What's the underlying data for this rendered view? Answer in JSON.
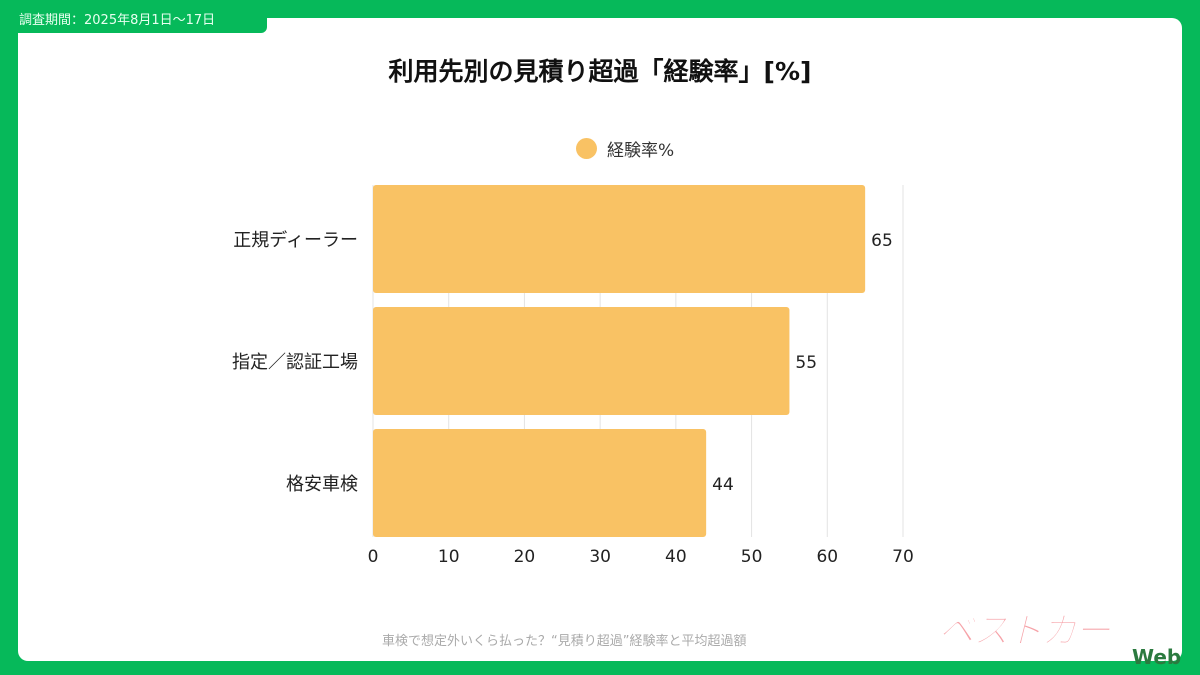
{
  "header": {
    "period": "調査期間：2025年8月1日〜17日"
  },
  "footer": {
    "caption": "車検で想定外いくら払った？“見積り超過”経験率と平均超過額",
    "logo": "ベストカー",
    "logo_suffix": "Web"
  },
  "chart_data": {
    "type": "bar",
    "orientation": "horizontal",
    "title": "利用先別の見積り超過「経験率」[%]",
    "legend": {
      "label": "経験率%",
      "placement": "top-center"
    },
    "categories": [
      "正規ディーラー",
      "指定／認証工場",
      "格安車検"
    ],
    "values": [
      65,
      55,
      44
    ],
    "xlim": [
      0,
      70
    ],
    "xticks": [
      0,
      10,
      20,
      30,
      40,
      50,
      60,
      70
    ],
    "grid": true,
    "color": "#f9c264"
  }
}
